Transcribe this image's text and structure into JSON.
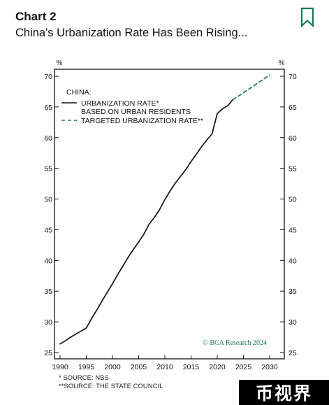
{
  "header": {
    "label": "Chart 2",
    "title": "China's Urbanization Rate Has Been Rising..."
  },
  "icons": {
    "bookmark": "bookmark-icon"
  },
  "colors": {
    "accent": "#1a7a55",
    "series_actual": "#111111",
    "series_target": "#1f7a4f",
    "credit": "#1f7a4f"
  },
  "chart_data": {
    "type": "line",
    "title": "",
    "xlabel": "",
    "ylabel": "%",
    "ylabel_right": "%",
    "xlim": [
      1990,
      2030
    ],
    "ylim": [
      25,
      71
    ],
    "x_ticks": [
      "1990",
      "1995",
      "2000",
      "2005",
      "2010",
      "2015",
      "2020",
      "2025",
      "2030"
    ],
    "y_ticks": [
      "25",
      "30",
      "35",
      "40",
      "45",
      "50",
      "55",
      "60",
      "65",
      "70"
    ],
    "legend": {
      "title": "CHINA:",
      "placement": "top-left"
    },
    "series": [
      {
        "name": "URBANIZATION RATE* BASED ON URBAN RESIDENTS",
        "legend_lines": [
          "URBANIZATION RATE*",
          "BASED ON URBAN RESIDENTS"
        ],
        "style": "solid",
        "x": [
          1990,
          1991,
          1992,
          1993,
          1994,
          1995,
          1996,
          1997,
          1998,
          1999,
          2000,
          2001,
          2002,
          2003,
          2004,
          2005,
          2006,
          2007,
          2008,
          2009,
          2010,
          2011,
          2012,
          2013,
          2014,
          2015,
          2016,
          2017,
          2018,
          2019,
          2020,
          2021,
          2022,
          2023
        ],
        "values": [
          26.4,
          26.9,
          27.5,
          28.0,
          28.5,
          29.0,
          30.5,
          31.9,
          33.4,
          34.8,
          36.2,
          37.7,
          39.1,
          40.5,
          41.8,
          43.0,
          44.3,
          45.9,
          47.0,
          48.3,
          49.9,
          51.3,
          52.6,
          53.7,
          54.8,
          56.1,
          57.3,
          58.5,
          59.6,
          60.6,
          63.9,
          64.7,
          65.2,
          66.2
        ]
      },
      {
        "name": "TARGETED URBANIZATION RATE**",
        "legend_lines": [
          "TARGETED URBANIZATION RATE**"
        ],
        "style": "dashed",
        "x": [
          2023,
          2025,
          2030
        ],
        "values": [
          66.2,
          67.3,
          70.2
        ]
      }
    ],
    "credit": "© BCA Research 2024",
    "footnotes": [
      "* SOURCE: NBS",
      "**SOURCE: THE STATE COUNCIL"
    ]
  },
  "watermark": {
    "text": "币视界"
  }
}
